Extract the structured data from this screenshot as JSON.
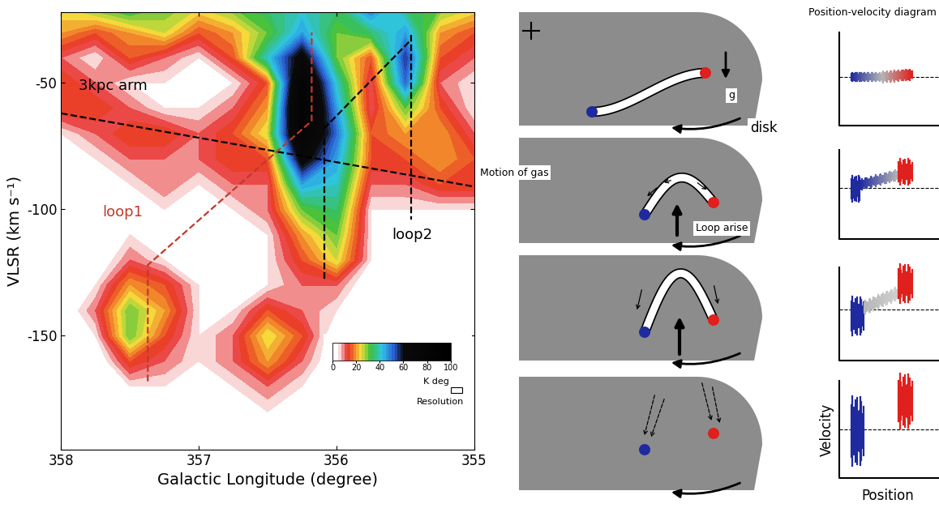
{
  "chart_data": {
    "type": "contour",
    "xlabel": "Galactic Longitude (degree)",
    "ylabel": "VLSR (km s⁻¹)",
    "x": [
      358.0,
      357.75,
      357.5,
      357.25,
      357.0,
      356.75,
      356.5,
      356.25,
      356.0,
      355.75,
      355.5,
      355.25,
      355.0
    ],
    "y": [
      -20,
      -30,
      -40,
      -50,
      -60,
      -70,
      -80,
      -90,
      -100,
      -110,
      -120,
      -130,
      -140,
      -150,
      -160,
      -170,
      -180,
      -190
    ],
    "cells": [
      [
        25,
        30,
        35,
        30,
        25,
        30,
        35,
        40,
        35,
        50,
        35,
        30,
        25
      ],
      [
        20,
        15,
        20,
        25,
        15,
        20,
        30,
        45,
        30,
        35,
        45,
        20,
        15
      ],
      [
        10,
        5,
        15,
        10,
        5,
        15,
        40,
        65,
        30,
        15,
        55,
        15,
        10
      ],
      [
        15,
        10,
        5,
        5,
        5,
        5,
        15,
        80,
        40,
        10,
        50,
        10,
        5
      ],
      [
        15,
        15,
        10,
        5,
        5,
        10,
        20,
        85,
        45,
        10,
        30,
        15,
        5
      ],
      [
        5,
        10,
        15,
        15,
        10,
        15,
        25,
        80,
        50,
        15,
        20,
        20,
        10
      ],
      [
        0,
        5,
        10,
        10,
        10,
        15,
        15,
        65,
        45,
        15,
        15,
        20,
        15
      ],
      [
        0,
        0,
        5,
        10,
        5,
        10,
        10,
        45,
        40,
        10,
        10,
        15,
        15
      ],
      [
        0,
        0,
        5,
        5,
        5,
        5,
        10,
        30,
        35,
        5,
        5,
        5,
        5
      ],
      [
        0,
        0,
        5,
        5,
        5,
        5,
        5,
        20,
        30,
        5,
        0,
        0,
        0
      ],
      [
        0,
        0,
        10,
        5,
        5,
        5,
        5,
        15,
        25,
        5,
        0,
        0,
        0
      ],
      [
        0,
        5,
        20,
        15,
        5,
        5,
        5,
        10,
        10,
        0,
        0,
        0,
        0
      ],
      [
        0,
        10,
        30,
        20,
        5,
        5,
        15,
        10,
        5,
        0,
        0,
        0,
        0
      ],
      [
        0,
        5,
        30,
        15,
        5,
        10,
        25,
        15,
        0,
        0,
        0,
        0,
        0
      ],
      [
        0,
        0,
        15,
        10,
        5,
        10,
        20,
        10,
        0,
        0,
        0,
        0,
        0
      ],
      [
        0,
        0,
        5,
        5,
        0,
        5,
        10,
        5,
        0,
        0,
        0,
        0,
        0
      ],
      [
        0,
        0,
        0,
        0,
        0,
        0,
        5,
        0,
        0,
        0,
        0,
        0,
        0
      ],
      [
        0,
        0,
        0,
        0,
        0,
        0,
        0,
        0,
        0,
        0,
        0,
        0,
        0
      ]
    ],
    "xlim": [
      358,
      355
    ],
    "ylim": [
      -195,
      -22
    ],
    "xticks": [
      358,
      357,
      356,
      355
    ],
    "yticks": [
      -50,
      -100,
      -150
    ],
    "colorbar": {
      "range": [
        0,
        100
      ],
      "ticks": [
        0,
        20,
        40,
        60,
        80,
        100
      ],
      "label": "K deg"
    },
    "lines": [
      {
        "color": "#000000",
        "line_style": "dashed",
        "x": [
          358.0,
          355.0
        ],
        "y": [
          -62,
          -91
        ]
      },
      {
        "color": "#c0392b",
        "line_style": "dashed",
        "x": [
          357.37,
          357.37,
          356.18,
          356.18
        ],
        "y": [
          -168,
          -122,
          -65,
          -30
        ]
      },
      {
        "color": "#000000",
        "line_style": "dashed",
        "x": [
          356.09,
          356.09
        ],
        "y": [
          -72,
          -128
        ]
      },
      {
        "color": "#000000",
        "line_style": "dashed",
        "x": [
          356.09,
          355.46
        ],
        "y": [
          -68,
          -33
        ]
      },
      {
        "color": "#000000",
        "line_style": "dashed",
        "x": [
          355.46,
          355.46
        ],
        "y": [
          -31,
          -104
        ]
      }
    ],
    "annotations": [
      {
        "text": "3kpc arm",
        "x": 357.62,
        "y": -51,
        "color": "#000000"
      },
      {
        "text": "loop1",
        "x": 357.55,
        "y": -101,
        "color": "#c0392b"
      },
      {
        "text": "loop2",
        "x": 355.45,
        "y": -110,
        "color": "#000000"
      }
    ],
    "resolution": {
      "label": "Resolution",
      "l": 355.13,
      "v": -171.5,
      "width": 0.08,
      "height": 2.5
    }
  },
  "diagram": {
    "header": "Position-velocity diagram",
    "labels": {
      "gravity": "g",
      "disk": "disk",
      "gas_motion": "Motion of gas",
      "loop": "Loop arise"
    },
    "axes": {
      "y": "Velocity",
      "x": "Position"
    }
  }
}
